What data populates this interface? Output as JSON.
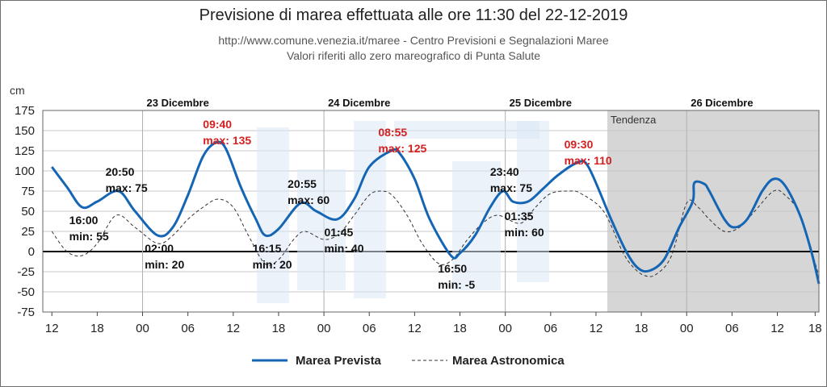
{
  "header": {
    "title": "Previsione di marea effettuata alle ore 11:30 del 22-12-2019",
    "source": "http://www.comune.venezia.it/maree - Centro Previsioni e Segnalazioni Maree",
    "note": "Valori riferiti allo zero mareografico di Punta Salute"
  },
  "colors": {
    "forecast": "#1565b5",
    "astronomical": "#333333",
    "max_label": "#d42020",
    "trend_band": "#d6d6d6",
    "watermark": "#dbe8f5"
  },
  "chart_data": {
    "type": "line",
    "ylabel": "cm",
    "ylim": [
      -75,
      175
    ],
    "yticks": [
      175,
      150,
      125,
      100,
      75,
      50,
      25,
      0,
      -25,
      -50,
      -75
    ],
    "x_unit": "hours since 22-12 00:00",
    "xlim": [
      10.8,
      113.5
    ],
    "xticks": [
      {
        "t": 12,
        "label": "12"
      },
      {
        "t": 18,
        "label": "18"
      },
      {
        "t": 24,
        "label": "00"
      },
      {
        "t": 30,
        "label": "06"
      },
      {
        "t": 36,
        "label": "12"
      },
      {
        "t": 42,
        "label": "18"
      },
      {
        "t": 48,
        "label": "00"
      },
      {
        "t": 54,
        "label": "06"
      },
      {
        "t": 60,
        "label": "12"
      },
      {
        "t": 66,
        "label": "18"
      },
      {
        "t": 72,
        "label": "00"
      },
      {
        "t": 78,
        "label": "06"
      },
      {
        "t": 84,
        "label": "12"
      },
      {
        "t": 90,
        "label": "18"
      },
      {
        "t": 96,
        "label": "00"
      },
      {
        "t": 102,
        "label": "06"
      },
      {
        "t": 108,
        "label": "12"
      },
      {
        "t": 113,
        "label": "18"
      }
    ],
    "days": [
      {
        "t": 24,
        "label": "23 Dicembre"
      },
      {
        "t": 48,
        "label": "24 Dicembre"
      },
      {
        "t": 72,
        "label": "25 Dicembre"
      },
      {
        "t": 96,
        "label": "26 Dicembre"
      }
    ],
    "trend": {
      "start": 85.5,
      "end": 113.5,
      "label": "Tendenza"
    },
    "grid": true,
    "legend": "bottom-center",
    "series": [
      {
        "name": "Marea Prevista",
        "style": "solid",
        "points": [
          [
            12,
            105
          ],
          [
            14,
            80
          ],
          [
            16,
            55
          ],
          [
            18,
            62
          ],
          [
            20.8,
            75
          ],
          [
            23,
            50
          ],
          [
            26,
            20
          ],
          [
            28,
            30
          ],
          [
            30,
            70
          ],
          [
            32,
            118
          ],
          [
            33.7,
            135
          ],
          [
            35,
            128
          ],
          [
            37,
            80
          ],
          [
            39,
            40
          ],
          [
            40.25,
            20
          ],
          [
            42,
            28
          ],
          [
            44.9,
            60
          ],
          [
            47,
            50
          ],
          [
            49.75,
            40
          ],
          [
            52,
            65
          ],
          [
            54,
            105
          ],
          [
            56.9,
            125
          ],
          [
            58,
            122
          ],
          [
            60,
            90
          ],
          [
            62,
            40
          ],
          [
            64.8,
            -5
          ],
          [
            66,
            -2
          ],
          [
            68,
            20
          ],
          [
            70,
            55
          ],
          [
            71.7,
            75
          ],
          [
            73,
            62
          ],
          [
            75,
            62
          ],
          [
            77,
            78
          ],
          [
            79,
            95
          ],
          [
            81.5,
            110
          ],
          [
            83,
            105
          ],
          [
            86,
            40
          ],
          [
            88,
            0
          ],
          [
            89.5,
            -20
          ],
          [
            91,
            -24
          ],
          [
            93,
            -10
          ],
          [
            95,
            30
          ],
          [
            96.8,
            62
          ],
          [
            97,
            85
          ],
          [
            98.3,
            84
          ],
          [
            99,
            75
          ],
          [
            101,
            40
          ],
          [
            102.3,
            30
          ],
          [
            104,
            40
          ],
          [
            106,
            75
          ],
          [
            107.5,
            90
          ],
          [
            109,
            82
          ],
          [
            111,
            45
          ],
          [
            112.5,
            0
          ],
          [
            113.5,
            -40
          ]
        ]
      },
      {
        "name": "Marea Astronomica",
        "style": "dashed",
        "points": [
          [
            12,
            25
          ],
          [
            14,
            0
          ],
          [
            16,
            -5
          ],
          [
            18,
            10
          ],
          [
            20.5,
            45
          ],
          [
            23,
            30
          ],
          [
            26,
            10
          ],
          [
            28,
            20
          ],
          [
            30,
            40
          ],
          [
            32,
            55
          ],
          [
            34,
            65
          ],
          [
            36,
            55
          ],
          [
            38,
            20
          ],
          [
            40.2,
            -15
          ],
          [
            42,
            -10
          ],
          [
            44,
            15
          ],
          [
            45.5,
            25
          ],
          [
            48,
            15
          ],
          [
            50,
            22
          ],
          [
            52,
            45
          ],
          [
            54,
            70
          ],
          [
            55.5,
            75
          ],
          [
            57,
            70
          ],
          [
            59,
            45
          ],
          [
            61,
            10
          ],
          [
            63.2,
            -15
          ],
          [
            65,
            -10
          ],
          [
            67,
            15
          ],
          [
            69,
            35
          ],
          [
            71,
            45
          ],
          [
            74,
            35
          ],
          [
            76,
            55
          ],
          [
            78,
            72
          ],
          [
            80.5,
            75
          ],
          [
            82,
            72
          ],
          [
            85,
            50
          ],
          [
            87.5,
            0
          ],
          [
            89,
            -20
          ],
          [
            90.5,
            -30
          ],
          [
            92,
            -28
          ],
          [
            94,
            -5
          ],
          [
            96,
            60
          ],
          [
            97.5,
            55
          ],
          [
            99,
            40
          ],
          [
            101,
            25
          ],
          [
            103,
            30
          ],
          [
            105,
            50
          ],
          [
            107.5,
            75
          ],
          [
            109,
            70
          ],
          [
            111,
            45
          ],
          [
            113.5,
            -30
          ]
        ]
      }
    ],
    "annotations": [
      {
        "t": 20.8,
        "v": 75,
        "time": "20:50",
        "text": "max: 75",
        "kind": "max"
      },
      {
        "t": 16.0,
        "v": 55,
        "time": "16:00",
        "text": "min: 55",
        "kind": "min"
      },
      {
        "t": 26.0,
        "v": 20,
        "time": "02:00",
        "text": "min: 20",
        "kind": "min"
      },
      {
        "t": 33.7,
        "v": 135,
        "time": "09:40",
        "text": "max: 135",
        "kind": "max",
        "highlight": true
      },
      {
        "t": 40.25,
        "v": 20,
        "time": "16:15",
        "text": "min: 20",
        "kind": "min"
      },
      {
        "t": 44.9,
        "v": 60,
        "time": "20:55",
        "text": "max: 60",
        "kind": "max"
      },
      {
        "t": 49.75,
        "v": 40,
        "time": "01:45",
        "text": "min: 40",
        "kind": "min"
      },
      {
        "t": 56.9,
        "v": 125,
        "time": "08:55",
        "text": "max: 125",
        "kind": "max",
        "highlight": true
      },
      {
        "t": 64.8,
        "v": -5,
        "time": "16:50",
        "text": "min: -5",
        "kind": "min"
      },
      {
        "t": 71.7,
        "v": 75,
        "time": "23:40",
        "text": "max: 75",
        "kind": "max"
      },
      {
        "t": 73.6,
        "v": 60,
        "time": "01:35",
        "text": "min: 60",
        "kind": "min"
      },
      {
        "t": 81.5,
        "v": 110,
        "time": "09:30",
        "text": "max: 110",
        "kind": "max",
        "highlight": true
      }
    ]
  }
}
